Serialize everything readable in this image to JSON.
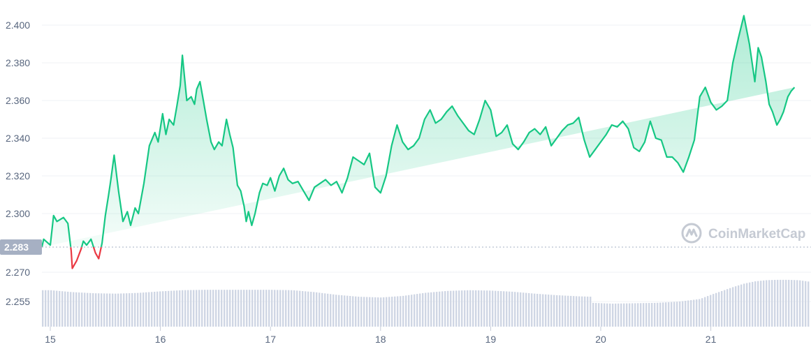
{
  "chart_data": {
    "type": "area",
    "title": "",
    "xlabel": "",
    "ylabel": "",
    "grid": true,
    "x_tick_labels": [
      "15",
      "16",
      "17",
      "18",
      "19",
      "20",
      "21"
    ],
    "y_tick_labels": [
      "2.400",
      "2.380",
      "2.360",
      "2.340",
      "2.320",
      "2.300",
      "2.270",
      "2.255"
    ],
    "reference_line": {
      "label": "2.283",
      "value": 2.283
    },
    "colors": {
      "above_reference": "#16c784",
      "below_reference": "#ea3943",
      "area_fill": "#16c784",
      "volume_bars": "#cfd6e4",
      "grid": "#eff2f5",
      "badge_bg": "#a6b0c3",
      "watermark": "#c5cad3"
    },
    "price_series": {
      "x_day": [
        14.9,
        14.94,
        15.0,
        15.03,
        15.06,
        15.12,
        15.16,
        15.19,
        15.2,
        15.24,
        15.28,
        15.3,
        15.33,
        15.37,
        15.41,
        15.44,
        15.47,
        15.5,
        15.53,
        15.55,
        15.58,
        15.62,
        15.66,
        15.7,
        15.73,
        15.77,
        15.8,
        15.85,
        15.9,
        15.95,
        15.98,
        16.02,
        16.05,
        16.08,
        16.12,
        16.15,
        16.18,
        16.2,
        16.24,
        16.28,
        16.31,
        16.33,
        16.36,
        16.39,
        16.42,
        16.46,
        16.49,
        16.53,
        16.56,
        16.6,
        16.63,
        16.66,
        16.7,
        16.73,
        16.76,
        16.78,
        16.8,
        16.83,
        16.86,
        16.9,
        16.93,
        16.97,
        17.0,
        17.04,
        17.08,
        17.12,
        17.16,
        17.2,
        17.25,
        17.3,
        17.35,
        17.4,
        17.45,
        17.5,
        17.55,
        17.6,
        17.65,
        17.7,
        17.75,
        17.8,
        17.85,
        17.9,
        17.95,
        18.0,
        18.05,
        18.1,
        18.15,
        18.2,
        18.25,
        18.3,
        18.35,
        18.4,
        18.45,
        18.5,
        18.55,
        18.6,
        18.65,
        18.7,
        18.75,
        18.8,
        18.85,
        18.9,
        18.95,
        19.0,
        19.05,
        19.1,
        19.15,
        19.2,
        19.25,
        19.3,
        19.35,
        19.4,
        19.45,
        19.5,
        19.55,
        19.6,
        19.65,
        19.7,
        19.75,
        19.8,
        19.85,
        19.9,
        19.95,
        20.0,
        20.05,
        20.1,
        20.15,
        20.2,
        20.25,
        20.3,
        20.35,
        20.4,
        20.45,
        20.5,
        20.55,
        20.6,
        20.65,
        20.7,
        20.75,
        20.8,
        20.85,
        20.9,
        20.95,
        21.0,
        21.05,
        21.1,
        21.15,
        21.2,
        21.25,
        21.3,
        21.35,
        21.4,
        21.43,
        21.46,
        21.5,
        21.53,
        21.56,
        21.6,
        21.63,
        21.66,
        21.7,
        21.73,
        21.76,
        21.8,
        21.85,
        21.9
      ],
      "price": [
        2.283,
        2.287,
        2.284,
        2.299,
        2.296,
        2.298,
        2.295,
        2.281,
        2.272,
        2.276,
        2.282,
        2.286,
        2.284,
        2.287,
        2.28,
        2.277,
        2.285,
        2.299,
        2.31,
        2.318,
        2.331,
        2.312,
        2.296,
        2.301,
        2.294,
        2.303,
        2.3,
        2.316,
        2.336,
        2.343,
        2.338,
        2.353,
        2.342,
        2.35,
        2.347,
        2.357,
        2.368,
        2.384,
        2.36,
        2.362,
        2.358,
        2.366,
        2.37,
        2.36,
        2.35,
        2.338,
        2.334,
        2.338,
        2.336,
        2.35,
        2.342,
        2.335,
        2.315,
        2.312,
        2.304,
        2.296,
        2.301,
        2.294,
        2.3,
        2.311,
        2.316,
        2.315,
        2.319,
        2.312,
        2.32,
        2.324,
        2.318,
        2.316,
        2.317,
        2.312,
        2.307,
        2.314,
        2.316,
        2.318,
        2.315,
        2.317,
        2.311,
        2.319,
        2.33,
        2.328,
        2.326,
        2.332,
        2.314,
        2.311,
        2.32,
        2.336,
        2.347,
        2.338,
        2.334,
        2.336,
        2.34,
        2.35,
        2.355,
        2.348,
        2.35,
        2.354,
        2.357,
        2.352,
        2.348,
        2.344,
        2.342,
        2.35,
        2.36,
        2.355,
        2.341,
        2.343,
        2.347,
        2.337,
        2.334,
        2.338,
        2.343,
        2.345,
        2.342,
        2.346,
        2.336,
        2.34,
        2.344,
        2.347,
        2.348,
        2.351,
        2.339,
        2.33,
        2.334,
        2.338,
        2.342,
        2.347,
        2.346,
        2.349,
        2.345,
        2.335,
        2.333,
        2.338,
        2.349,
        2.34,
        2.339,
        2.33,
        2.33,
        2.327,
        2.322,
        2.33,
        2.339,
        2.362,
        2.367,
        2.359,
        2.355,
        2.357,
        2.36,
        2.38,
        2.393,
        2.405,
        2.39,
        2.37,
        2.388,
        2.383,
        2.37,
        2.358,
        2.354,
        2.347,
        2.35,
        2.354,
        2.362,
        2.365,
        2.367
      ]
    },
    "volume_series": {
      "x_day": [
        14.9,
        15.0,
        15.2,
        15.4,
        15.6,
        15.8,
        16.0,
        16.2,
        16.4,
        16.6,
        16.8,
        17.0,
        17.2,
        17.4,
        17.6,
        17.8,
        18.0,
        18.2,
        18.4,
        18.6,
        18.8,
        19.0,
        19.2,
        19.4,
        19.6,
        19.8,
        19.92,
        19.93,
        20.1,
        20.3,
        20.5,
        20.7,
        20.9,
        21.0,
        21.1,
        21.2,
        21.3,
        21.4,
        21.5,
        21.6,
        21.7,
        21.8,
        21.9
      ],
      "level": [
        0.95,
        0.95,
        0.9,
        0.87,
        0.86,
        0.88,
        0.92,
        0.95,
        0.96,
        0.96,
        0.96,
        0.96,
        0.95,
        0.9,
        0.83,
        0.78,
        0.76,
        0.8,
        0.88,
        0.93,
        0.95,
        0.94,
        0.91,
        0.86,
        0.82,
        0.79,
        0.78,
        0.62,
        0.6,
        0.61,
        0.62,
        0.65,
        0.72,
        0.83,
        0.93,
        1.03,
        1.12,
        1.18,
        1.21,
        1.22,
        1.22,
        1.21,
        1.17
      ]
    }
  },
  "watermark": {
    "text": "CoinMarketCap"
  }
}
